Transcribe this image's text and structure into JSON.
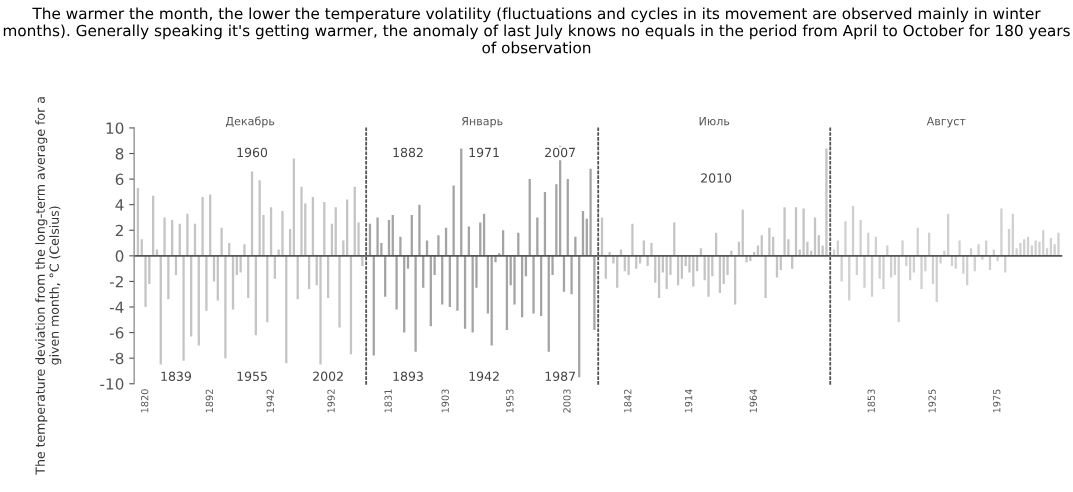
{
  "chart_data": [
    {
      "type": "bar",
      "title": "Декабрь",
      "ylabel": "The temperature deviation from the long-term average for a given month, °C (Celsius)",
      "annotations": [
        "The warmer the month, the lower the temperature volatility (fluctuations and cycles in its movement are observed mainly in winter months). Generally speaking it's getting warmer, the anomaly of last July knows no equals in the period from April to October for 180 years of observation",
        {
          "text": "1960",
          "y": 8
        },
        {
          "text": "1839",
          "y": -9.5
        },
        {
          "text": "1955",
          "y": -9.5
        },
        {
          "text": "2002",
          "y": -9.5
        }
      ],
      "categories": [
        null,
        null,
        "1820",
        null,
        null,
        null,
        null,
        null,
        null,
        null,
        null,
        null,
        null,
        null,
        null,
        null,
        null,
        null,
        null,
        "1892",
        null,
        null,
        null,
        null,
        null,
        null,
        null,
        null,
        null,
        null,
        null,
        null,
        null,
        null,
        null,
        "1942",
        null,
        null,
        null,
        null,
        null,
        null,
        null,
        null,
        null,
        null,
        null,
        null,
        null,
        null,
        null,
        "1992",
        null,
        null,
        null,
        null,
        null,
        null,
        null,
        null
      ],
      "series": [
        {
          "color": "#c4c4c4",
          "values": [
            5.3,
            1.3,
            -4,
            -2.2,
            4.7,
            0.5,
            -8.5,
            3,
            -3.4,
            2.8,
            -1.5,
            2.5,
            -8.2,
            3.3,
            -6.3,
            2.5,
            -7,
            4.6,
            -4.3,
            4.8,
            -2,
            -3.5,
            2.2,
            -8,
            1,
            -4.2,
            -1.5,
            -1.3,
            0.9,
            -3.3,
            6.6,
            -6.2,
            5.9,
            3.2,
            -5.2,
            3.8,
            -1.8,
            0.5,
            3.5,
            -8.4,
            2.1,
            7.6,
            -3.4,
            5.4,
            4.1,
            -2.6,
            4.6,
            -2.3,
            -8.5,
            4.2,
            -3.3,
            2.5,
            3.8,
            -5.6,
            1.2,
            4.4,
            -7.7,
            5.4,
            2.6,
            -0.8
          ]
        }
      ],
      "ylim": [
        -10,
        10
      ],
      "yticks": [
        -10,
        -8,
        -6,
        -4,
        -2,
        0,
        2,
        4,
        6,
        8,
        10
      ],
      "ref_lines": [
        {
          "axis": "y",
          "value": 0,
          "color": "#555555"
        }
      ],
      "grid": false,
      "legend": false
    },
    {
      "type": "bar",
      "title": "Январь",
      "annotations": [
        {
          "text": "1882",
          "y": 8
        },
        {
          "text": "1971",
          "y": 8
        },
        {
          "text": "2007",
          "y": 8
        },
        {
          "text": "1893",
          "y": -9.5
        },
        {
          "text": "1942",
          "y": -9.5
        },
        {
          "text": "1987",
          "y": -9.5
        }
      ],
      "categories": [
        null,
        null,
        null,
        null,
        null,
        "1831",
        null,
        null,
        null,
        null,
        null,
        null,
        null,
        null,
        null,
        null,
        null,
        null,
        null,
        null,
        "1903",
        null,
        null,
        null,
        null,
        null,
        null,
        null,
        null,
        null,
        null,
        null,
        null,
        null,
        null,
        null,
        null,
        "1953",
        null,
        null,
        null,
        null,
        null,
        null,
        null,
        null,
        null,
        null,
        null,
        null,
        null,
        null,
        "2003",
        null,
        null,
        null,
        null,
        null,
        null,
        null
      ],
      "series": [
        {
          "color": "#a4a4a4",
          "values": [
            2.5,
            -7.8,
            3,
            1,
            -3.2,
            2.8,
            3.2,
            -4.2,
            1.5,
            -6,
            -1,
            3.2,
            -7.5,
            4,
            -2.5,
            1.2,
            -5.5,
            -1.5,
            1.6,
            -3.8,
            2.2,
            -4,
            5.5,
            -4.3,
            8.4,
            -5.7,
            2.3,
            -6,
            -2.5,
            2.6,
            3.3,
            -4.5,
            -7,
            -0.5,
            0.2,
            2,
            -5.8,
            -2.3,
            -3.8,
            1.8,
            -4.8,
            -1.6,
            6,
            -4.5,
            3,
            -4.7,
            5,
            -7.5,
            -1.5,
            5.6,
            8.6,
            -2.8,
            6,
            -3,
            1.5,
            -9.5,
            3.5,
            2.9,
            6.8,
            -5.8
          ]
        }
      ],
      "ylim": [
        -10,
        10
      ],
      "tick_labels": "x",
      "ref_lines": [
        {
          "axis": "y",
          "value": 0,
          "color": "#555555"
        }
      ],
      "grid": false,
      "legend": false
    },
    {
      "type": "bar",
      "title": "Июль",
      "annotations": [
        {
          "text": "2010",
          "y": 6
        }
      ],
      "categories": [
        null,
        null,
        null,
        null,
        null,
        null,
        null,
        "1842",
        null,
        null,
        null,
        null,
        null,
        null,
        null,
        null,
        null,
        null,
        null,
        null,
        null,
        null,
        null,
        "1914",
        null,
        null,
        null,
        null,
        null,
        null,
        null,
        null,
        null,
        null,
        null,
        null,
        null,
        null,
        null,
        null,
        "1964",
        null,
        null,
        null,
        null,
        null,
        null,
        null,
        null,
        null,
        null,
        null,
        null,
        null,
        null,
        null,
        null,
        null,
        null,
        null
      ],
      "series": [
        {
          "color": "#c4c4c4",
          "values": [
            3,
            -1.8,
            0.3,
            -0.6,
            -2.5,
            0.5,
            -1.2,
            -1.5,
            2.5,
            -1,
            -0.6,
            1.2,
            -0.8,
            1,
            -2.1,
            -3.3,
            -1.3,
            -2.6,
            -1.5,
            2.6,
            -2.3,
            -1.8,
            -0.8,
            -1.3,
            -2.4,
            -1.2,
            0.6,
            -1.9,
            -3.2,
            -1.6,
            1.8,
            -2.9,
            -2.2,
            -1.5,
            0.4,
            -3.8,
            1.1,
            3.6,
            -0.5,
            -0.4,
            0.3,
            0.8,
            1.6,
            -3.3,
            2.2,
            1.5,
            -1.7,
            -1.1,
            3.8,
            1.3,
            -1,
            3.8,
            0.5,
            3.7,
            1.1,
            0.4,
            3,
            1.6,
            0.8,
            8.4
          ]
        }
      ],
      "ylim": [
        -10,
        10
      ],
      "tick_labels": "x",
      "ref_lines": [
        {
          "axis": "y",
          "value": 0,
          "color": "#555555"
        }
      ],
      "grid": false,
      "legend": false
    },
    {
      "type": "bar",
      "title": "Август",
      "categories": [
        null,
        null,
        null,
        null,
        null,
        null,
        null,
        null,
        null,
        null,
        "1853",
        null,
        null,
        null,
        null,
        null,
        null,
        null,
        null,
        null,
        null,
        null,
        null,
        null,
        null,
        null,
        "1925",
        null,
        null,
        null,
        null,
        null,
        null,
        null,
        null,
        null,
        null,
        null,
        null,
        null,
        null,
        null,
        null,
        "1975",
        null,
        null,
        null,
        null,
        null,
        null,
        null,
        null,
        null,
        null,
        null,
        null,
        null,
        null,
        null,
        null
      ],
      "series": [
        {
          "color": "#d0d0d0",
          "values": [
            0.5,
            1.2,
            -2,
            2.7,
            -3.5,
            3.9,
            -1.5,
            2.8,
            -2.5,
            1.8,
            -3.2,
            1.5,
            -1.8,
            -2.6,
            0.8,
            -1.7,
            -1.5,
            -5.2,
            1.2,
            -0.8,
            -1.9,
            -1.3,
            2.2,
            -2.6,
            -1.2,
            1.8,
            -2.2,
            -3.6,
            -0.6,
            0.4,
            3.3,
            -0.8,
            -1,
            1.2,
            -1.4,
            -2.3,
            0.6,
            -1.2,
            0.9,
            -0.3,
            1.2,
            -1.1,
            0.5,
            -0.4,
            3.7,
            -1.3,
            2.1,
            3.3,
            0.6,
            1,
            1.3,
            1.5,
            0.8,
            1.2,
            1.1,
            2,
            0.6,
            1.4,
            0.9,
            1.8
          ]
        }
      ],
      "ylim": [
        -10,
        10
      ],
      "tick_labels": "x",
      "ref_lines": [
        {
          "axis": "y",
          "value": 0,
          "color": "#555555"
        }
      ],
      "grid": false,
      "legend": false
    }
  ]
}
